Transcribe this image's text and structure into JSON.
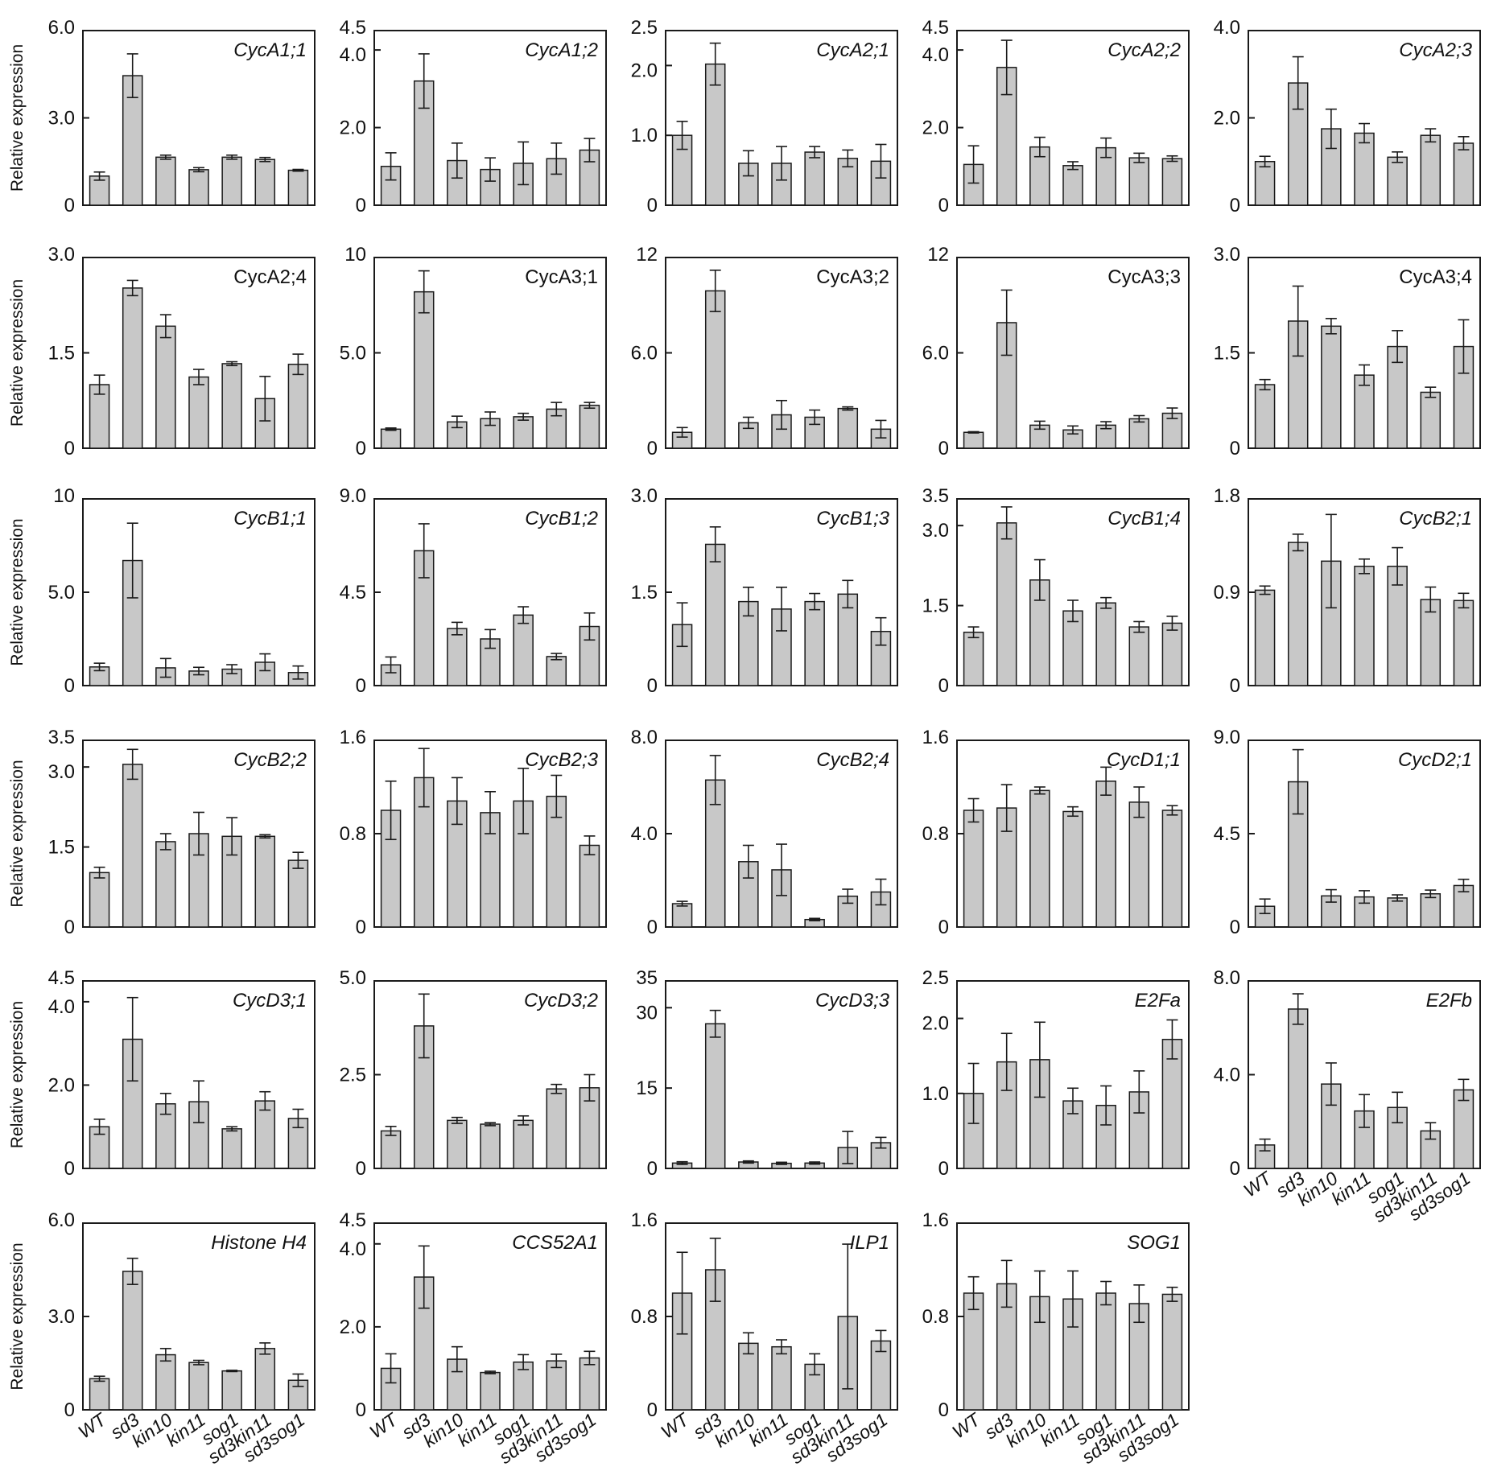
{
  "figure": {
    "ylabel": "Relative expression",
    "bar_color": "#c8c8c8",
    "bar_stroke": "#1a1a1a",
    "categories": [
      "WT",
      "sd3",
      "kin10",
      "kin11",
      "sog1",
      "sd3kin11",
      "sd3sog1"
    ],
    "category_italic": [
      false,
      true,
      true,
      true,
      true,
      true,
      true
    ]
  },
  "chart_data": [
    {
      "type": "bar",
      "title": "CycA1;1",
      "title_italic": true,
      "ylim": [
        0,
        6.0
      ],
      "yticks": [
        "0",
        "3.0",
        "6.0"
      ],
      "values": [
        1.0,
        4.45,
        1.65,
        1.22,
        1.65,
        1.57,
        1.2
      ],
      "errors": [
        0.14,
        0.75,
        0.07,
        0.07,
        0.07,
        0.07,
        0.03
      ]
    },
    {
      "type": "bar",
      "title": "CycA1;2",
      "title_italic": true,
      "ylim": [
        0,
        4.5
      ],
      "yticks": [
        "0",
        "2.0",
        "4.0",
        "4.5"
      ],
      "values": [
        1.0,
        3.2,
        1.15,
        0.92,
        1.08,
        1.2,
        1.42
      ],
      "errors": [
        0.35,
        0.7,
        0.45,
        0.3,
        0.55,
        0.4,
        0.3
      ]
    },
    {
      "type": "bar",
      "title": "CycA2;1",
      "title_italic": true,
      "ylim": [
        0,
        2.5
      ],
      "yticks": [
        "0",
        "1.0",
        "2.0",
        "2.5"
      ],
      "values": [
        1.0,
        2.02,
        0.6,
        0.6,
        0.76,
        0.67,
        0.63
      ],
      "errors": [
        0.2,
        0.3,
        0.18,
        0.24,
        0.08,
        0.12,
        0.24
      ]
    },
    {
      "type": "bar",
      "title": "CycA2;2",
      "title_italic": true,
      "ylim": [
        0,
        4.5
      ],
      "yticks": [
        "0",
        "2.0",
        "4.0",
        "4.5"
      ],
      "values": [
        1.05,
        3.55,
        1.5,
        1.02,
        1.48,
        1.22,
        1.2
      ],
      "errors": [
        0.48,
        0.7,
        0.25,
        0.1,
        0.25,
        0.12,
        0.07
      ]
    },
    {
      "type": "bar",
      "title": "CycA2;3",
      "title_italic": true,
      "ylim": [
        0,
        4.0
      ],
      "yticks": [
        "0",
        "2.0",
        "4.0"
      ],
      "values": [
        1.0,
        2.8,
        1.75,
        1.65,
        1.1,
        1.6,
        1.42
      ],
      "errors": [
        0.12,
        0.6,
        0.45,
        0.22,
        0.12,
        0.15,
        0.15
      ]
    },
    {
      "type": "bar",
      "title": "CycA2;4",
      "title_italic": false,
      "ylim": [
        0,
        3.0
      ],
      "yticks": [
        "0",
        "1.5",
        "3.0"
      ],
      "values": [
        1.0,
        2.52,
        1.92,
        1.12,
        1.33,
        0.78,
        1.32
      ],
      "errors": [
        0.15,
        0.12,
        0.18,
        0.12,
        0.03,
        0.35,
        0.16
      ]
    },
    {
      "type": "bar",
      "title": "CycA3;1",
      "title_italic": false,
      "ylim": [
        0,
        10
      ],
      "yticks": [
        "0",
        "5.0",
        "10"
      ],
      "values": [
        1.0,
        8.2,
        1.38,
        1.55,
        1.65,
        2.05,
        2.25
      ],
      "errors": [
        0.06,
        1.1,
        0.3,
        0.35,
        0.18,
        0.35,
        0.15
      ]
    },
    {
      "type": "bar",
      "title": "CycA3;2",
      "title_italic": false,
      "ylim": [
        0,
        12
      ],
      "yticks": [
        "0",
        "6.0",
        "12"
      ],
      "values": [
        1.0,
        9.9,
        1.6,
        2.1,
        1.95,
        2.5,
        1.2
      ],
      "errors": [
        0.3,
        1.3,
        0.35,
        0.9,
        0.45,
        0.1,
        0.55
      ]
    },
    {
      "type": "bar",
      "title": "CycA3;3",
      "title_italic": false,
      "ylim": [
        0,
        12
      ],
      "yticks": [
        "0",
        "6.0",
        "12"
      ],
      "values": [
        1.0,
        7.9,
        1.45,
        1.15,
        1.45,
        1.85,
        2.2
      ],
      "errors": [
        0.04,
        2.05,
        0.25,
        0.25,
        0.22,
        0.2,
        0.33
      ]
    },
    {
      "type": "bar",
      "title": "CycA3;4",
      "title_italic": false,
      "ylim": [
        0,
        3.0
      ],
      "yticks": [
        "0",
        "1.5",
        "3.0"
      ],
      "values": [
        1.0,
        2.0,
        1.92,
        1.15,
        1.6,
        0.88,
        1.6
      ],
      "errors": [
        0.08,
        0.55,
        0.12,
        0.16,
        0.25,
        0.08,
        0.42
      ]
    },
    {
      "type": "bar",
      "title": "CycB1;1",
      "title_italic": true,
      "ylim": [
        0,
        10
      ],
      "yticks": [
        "0",
        "5.0",
        "10"
      ],
      "values": [
        1.0,
        6.7,
        0.95,
        0.78,
        0.88,
        1.25,
        0.7
      ],
      "errors": [
        0.2,
        2.0,
        0.5,
        0.2,
        0.24,
        0.45,
        0.35
      ]
    },
    {
      "type": "bar",
      "title": "CycB1;2",
      "title_italic": true,
      "ylim": [
        0,
        9.0
      ],
      "yticks": [
        "0",
        "4.5",
        "9.0"
      ],
      "values": [
        1.0,
        6.5,
        2.75,
        2.25,
        3.4,
        1.4,
        2.85
      ],
      "errors": [
        0.38,
        1.3,
        0.3,
        0.45,
        0.4,
        0.15,
        0.65
      ]
    },
    {
      "type": "bar",
      "title": "CycB1;3",
      "title_italic": true,
      "ylim": [
        0,
        3.0
      ],
      "yticks": [
        "0",
        "1.5",
        "3.0"
      ],
      "values": [
        0.98,
        2.27,
        1.35,
        1.23,
        1.35,
        1.47,
        0.87
      ],
      "errors": [
        0.35,
        0.28,
        0.23,
        0.35,
        0.13,
        0.22,
        0.22
      ]
    },
    {
      "type": "bar",
      "title": "CycB1;4",
      "title_italic": true,
      "ylim": [
        0,
        3.5
      ],
      "yticks": [
        "0",
        "1.5",
        "3.0",
        "3.5"
      ],
      "values": [
        1.0,
        3.05,
        1.98,
        1.4,
        1.55,
        1.1,
        1.17
      ],
      "errors": [
        0.1,
        0.3,
        0.38,
        0.2,
        0.1,
        0.1,
        0.13
      ]
    },
    {
      "type": "bar",
      "title": "CycB2;1",
      "title_italic": true,
      "ylim": [
        0,
        1.8
      ],
      "yticks": [
        "0",
        "0.9",
        "1.8"
      ],
      "values": [
        0.92,
        1.38,
        1.2,
        1.15,
        1.15,
        0.83,
        0.82
      ],
      "errors": [
        0.04,
        0.08,
        0.45,
        0.07,
        0.18,
        0.12,
        0.07
      ]
    },
    {
      "type": "bar",
      "title": "CycB2;2",
      "title_italic": true,
      "ylim": [
        0,
        3.5
      ],
      "yticks": [
        "0",
        "1.5",
        "3.0",
        "3.5"
      ],
      "values": [
        1.02,
        3.05,
        1.6,
        1.75,
        1.7,
        1.7,
        1.25
      ],
      "errors": [
        0.1,
        0.28,
        0.15,
        0.4,
        0.35,
        0.03,
        0.15
      ]
    },
    {
      "type": "bar",
      "title": "CycB2;3",
      "title_italic": true,
      "ylim": [
        0,
        1.6
      ],
      "yticks": [
        "0",
        "0.8",
        "1.6"
      ],
      "values": [
        1.0,
        1.28,
        1.08,
        0.98,
        1.08,
        1.12,
        0.7
      ],
      "errors": [
        0.25,
        0.25,
        0.2,
        0.18,
        0.28,
        0.18,
        0.08
      ]
    },
    {
      "type": "bar",
      "title": "CycB2;4",
      "title_italic": true,
      "ylim": [
        0,
        8.0
      ],
      "yticks": [
        "0",
        "4.0",
        "8.0"
      ],
      "values": [
        1.0,
        6.3,
        2.8,
        2.45,
        0.32,
        1.32,
        1.5
      ],
      "errors": [
        0.1,
        1.05,
        0.7,
        1.1,
        0.05,
        0.3,
        0.55
      ]
    },
    {
      "type": "bar",
      "title": "CycD1;1",
      "title_italic": true,
      "ylim": [
        0,
        1.6
      ],
      "yticks": [
        "0",
        "0.8",
        "1.6"
      ],
      "values": [
        1.0,
        1.02,
        1.17,
        0.99,
        1.25,
        1.07,
        1.0
      ],
      "errors": [
        0.1,
        0.2,
        0.03,
        0.04,
        0.12,
        0.13,
        0.04
      ]
    },
    {
      "type": "bar",
      "title": "CycD2;1",
      "title_italic": true,
      "ylim": [
        0,
        9.0
      ],
      "yticks": [
        "0",
        "4.5",
        "9.0"
      ],
      "values": [
        1.0,
        7.0,
        1.5,
        1.45,
        1.4,
        1.6,
        2.0
      ],
      "errors": [
        0.35,
        1.55,
        0.3,
        0.3,
        0.15,
        0.18,
        0.3
      ]
    },
    {
      "type": "bar",
      "title": "CycD3;1",
      "title_italic": true,
      "ylim": [
        0,
        4.5
      ],
      "yticks": [
        "0",
        "2.0",
        "4.0",
        "4.5"
      ],
      "values": [
        1.0,
        3.1,
        1.55,
        1.6,
        0.95,
        1.62,
        1.2
      ],
      "errors": [
        0.18,
        1.0,
        0.25,
        0.5,
        0.05,
        0.22,
        0.22
      ]
    },
    {
      "type": "bar",
      "title": "CycD3;2",
      "title_italic": true,
      "ylim": [
        0,
        5.0
      ],
      "yticks": [
        "0",
        "2.5",
        "5.0"
      ],
      "values": [
        1.0,
        3.8,
        1.28,
        1.18,
        1.28,
        2.12,
        2.15
      ],
      "errors": [
        0.12,
        0.85,
        0.08,
        0.04,
        0.12,
        0.12,
        0.35
      ]
    },
    {
      "type": "bar",
      "title": "CycD3;3",
      "title_italic": true,
      "ylim": [
        0,
        35
      ],
      "yticks": [
        "0",
        "15",
        "30",
        "35"
      ],
      "values": [
        1.0,
        27.0,
        1.2,
        0.95,
        1.0,
        3.9,
        4.8
      ],
      "errors": [
        0.25,
        2.5,
        0.2,
        0.2,
        0.2,
        3.0,
        1.0
      ]
    },
    {
      "type": "bar",
      "title": "E2Fa",
      "title_italic": true,
      "ylim": [
        0,
        2.5
      ],
      "yticks": [
        "0",
        "1.0",
        "2.0",
        "2.5"
      ],
      "values": [
        1.0,
        1.42,
        1.45,
        0.9,
        0.84,
        1.02,
        1.72
      ],
      "errors": [
        0.4,
        0.38,
        0.5,
        0.17,
        0.26,
        0.28,
        0.26
      ]
    },
    {
      "type": "bar",
      "title": "E2Fb",
      "title_italic": true,
      "ylim": [
        0,
        8.0
      ],
      "yticks": [
        "0",
        "4.0",
        "8.0"
      ],
      "values": [
        1.0,
        6.8,
        3.6,
        2.45,
        2.6,
        1.6,
        3.35
      ],
      "errors": [
        0.25,
        0.65,
        0.9,
        0.7,
        0.65,
        0.35,
        0.45
      ]
    },
    {
      "type": "bar",
      "title": "Histone H4",
      "title_italic": true,
      "ylim": [
        0,
        6.0
      ],
      "yticks": [
        "0",
        "3.0",
        "6.0"
      ],
      "values": [
        1.0,
        4.45,
        1.77,
        1.52,
        1.25,
        1.97,
        0.95
      ],
      "errors": [
        0.08,
        0.42,
        0.2,
        0.07,
        0.02,
        0.18,
        0.2
      ]
    },
    {
      "type": "bar",
      "title": "CCS52A1",
      "title_italic": true,
      "ylim": [
        0,
        4.5
      ],
      "yticks": [
        "0",
        "2.0",
        "4.0",
        "4.5"
      ],
      "values": [
        1.0,
        3.2,
        1.22,
        0.9,
        1.15,
        1.18,
        1.25
      ],
      "errors": [
        0.35,
        0.75,
        0.3,
        0.03,
        0.18,
        0.16,
        0.16
      ]
    },
    {
      "type": "bar",
      "title": "ILP1",
      "title_italic": true,
      "ylim": [
        0,
        1.6
      ],
      "yticks": [
        "0",
        "0.8",
        "1.6"
      ],
      "values": [
        1.0,
        1.2,
        0.57,
        0.54,
        0.39,
        0.8,
        0.59
      ],
      "errors": [
        0.35,
        0.27,
        0.09,
        0.06,
        0.09,
        0.62,
        0.09
      ]
    },
    {
      "type": "bar",
      "title": "SOG1",
      "title_italic": true,
      "ylim": [
        0,
        1.6
      ],
      "yticks": [
        "0",
        "0.8",
        "1.6"
      ],
      "values": [
        1.0,
        1.08,
        0.97,
        0.95,
        1.0,
        0.91,
        0.99
      ],
      "errors": [
        0.14,
        0.2,
        0.22,
        0.24,
        0.1,
        0.16,
        0.06
      ]
    }
  ]
}
